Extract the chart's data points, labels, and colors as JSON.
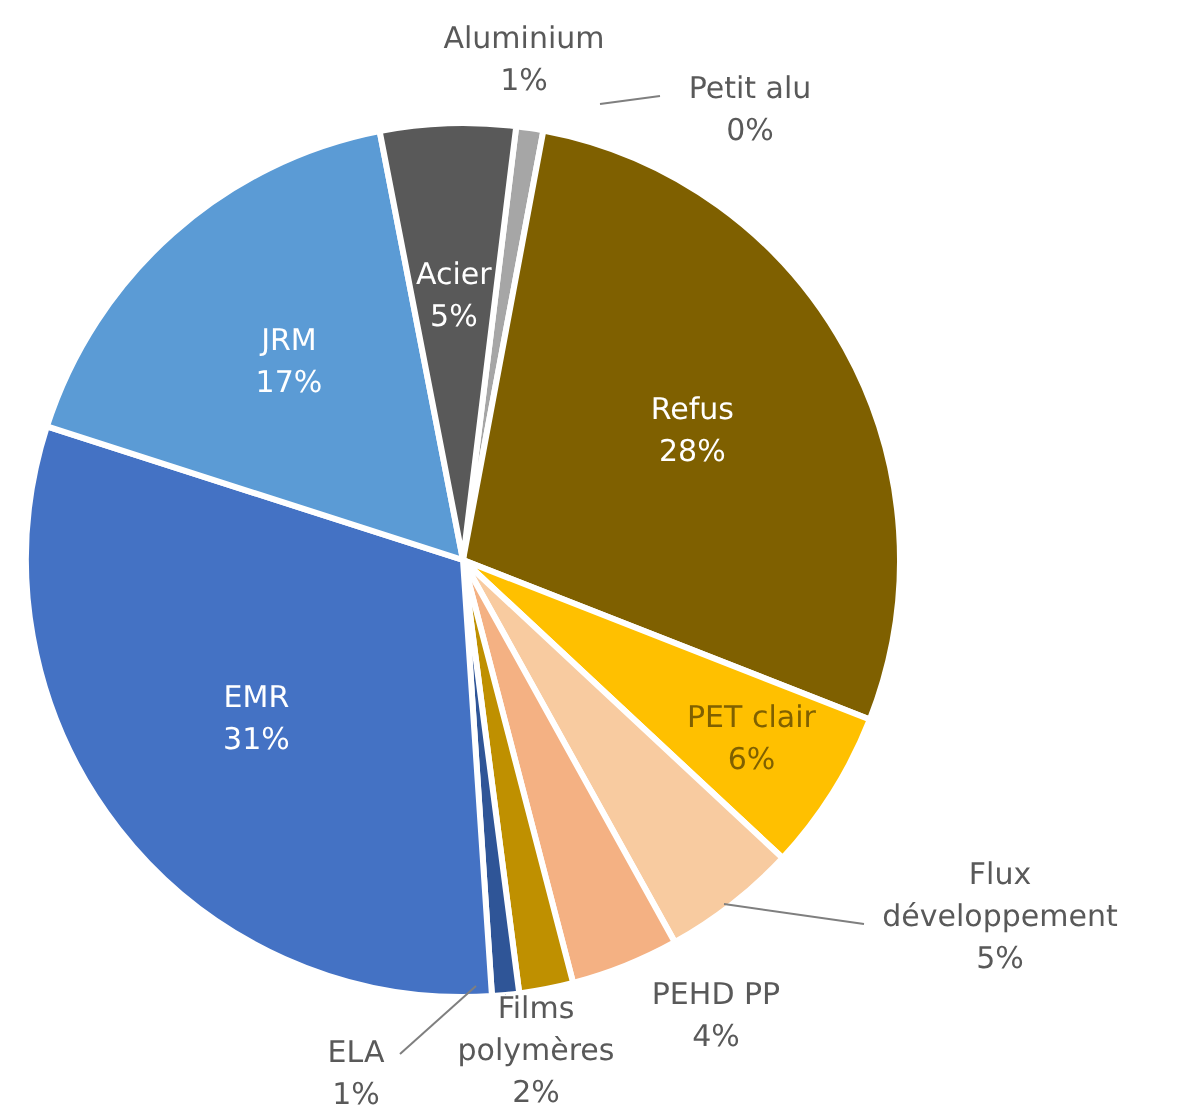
{
  "chart_data": {
    "type": "pie",
    "categories": [
      "Aluminium",
      "Petit alu",
      "Refus",
      "PET clair",
      "Flux développement",
      "PEHD PP",
      "Films polymères",
      "ELA",
      "EMR",
      "JRM",
      "Acier"
    ],
    "values": [
      1,
      0,
      28,
      6,
      5,
      4,
      2,
      1,
      31,
      17,
      5
    ],
    "value_labels": [
      "1%",
      "0%",
      "28%",
      "6%",
      "5%",
      "4%",
      "2%",
      "1%",
      "31%",
      "17%",
      "5%"
    ],
    "colors": [
      "#a6a6a6",
      "#7f7f7f",
      "#7f6000",
      "#ffc000",
      "#f8cba0",
      "#f4b183",
      "#bf9000",
      "#2f5597",
      "#4472c4",
      "#5b9bd5",
      "#595959"
    ]
  }
}
